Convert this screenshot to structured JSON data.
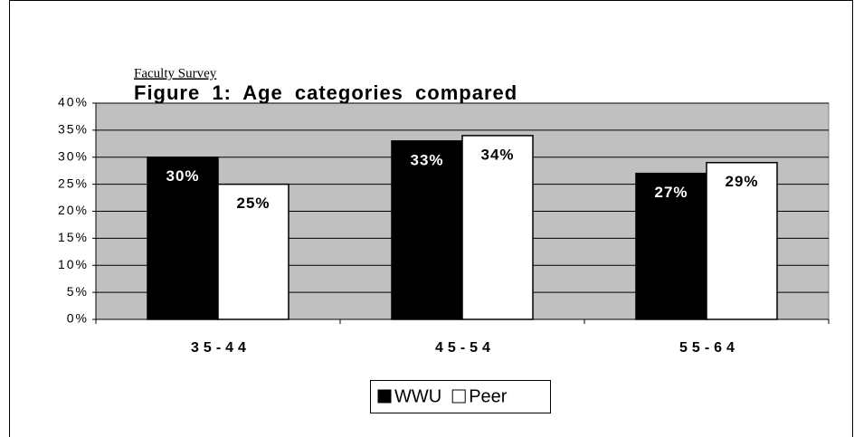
{
  "chart_data": {
    "type": "bar",
    "subtitle": "Faculty Survey",
    "title": "Figure 1: Age categories compared",
    "categories": [
      "35-44",
      "45-54",
      "55-64"
    ],
    "series": [
      {
        "name": "WWU",
        "color": "#000000",
        "values": [
          30,
          33,
          27
        ],
        "value_labels": [
          "30%",
          "33%",
          "27%"
        ]
      },
      {
        "name": "Peer",
        "color": "#ffffff",
        "values": [
          25,
          34,
          29
        ],
        "value_labels": [
          "25%",
          "34%",
          "29%"
        ]
      }
    ],
    "ylim": [
      0,
      40
    ],
    "yticks": [
      {
        "value": 0,
        "label": "0%"
      },
      {
        "value": 5,
        "label": "5%"
      },
      {
        "value": 10,
        "label": "10%"
      },
      {
        "value": 15,
        "label": "15%"
      },
      {
        "value": 20,
        "label": "20%"
      },
      {
        "value": 25,
        "label": "25%"
      },
      {
        "value": 30,
        "label": "30%"
      },
      {
        "value": 35,
        "label": "35%"
      },
      {
        "value": 40,
        "label": "40%"
      }
    ],
    "grid": true,
    "plot_background": "#c0c0c0",
    "legend": "bottom"
  }
}
